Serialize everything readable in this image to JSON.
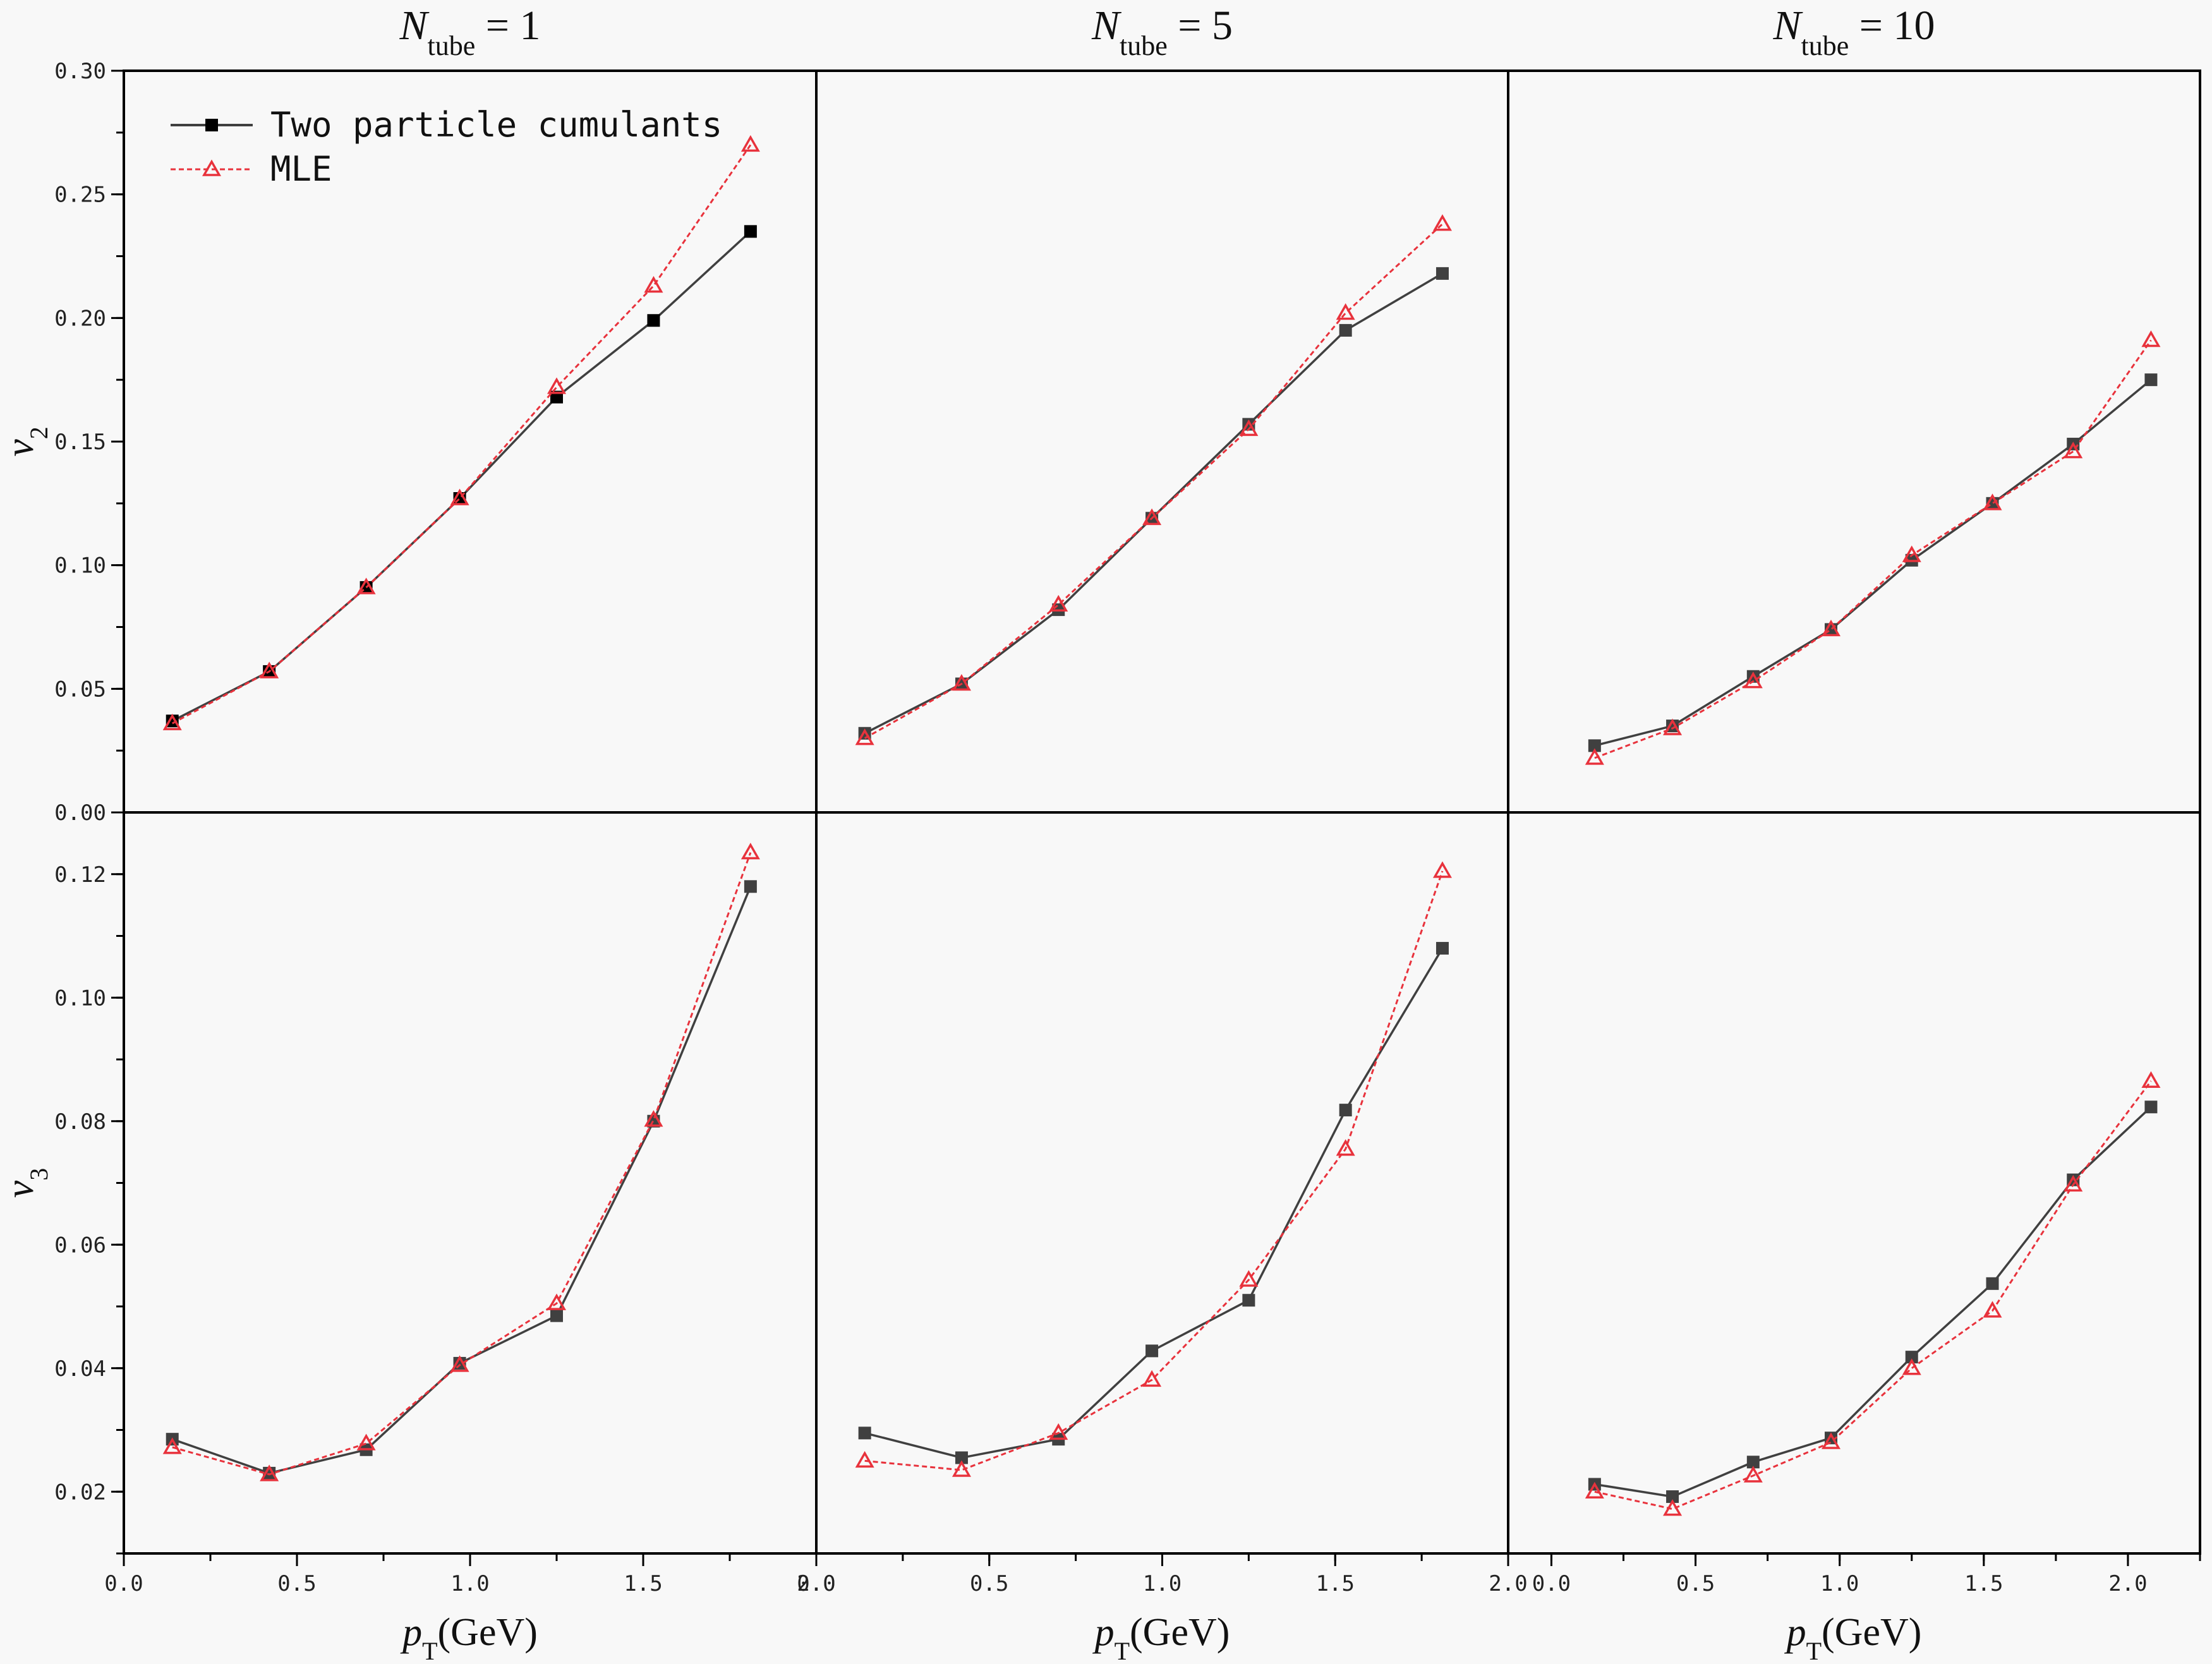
{
  "chart_data": {
    "type": "line",
    "x_label": {
      "var": "p",
      "sub": "T",
      "unit": "(GeV)"
    },
    "legend": {
      "placement": "top-left",
      "entries": [
        "Two particle cumulants",
        "MLE"
      ]
    },
    "colors": {
      "cumulants": "#404040",
      "mle": "#e8323c",
      "frame": "#000000",
      "background": "#f8f8f8"
    },
    "column_titles": [
      {
        "var": "N",
        "sub": "tube",
        "text": " = 1"
      },
      {
        "var": "N",
        "sub": "tube",
        "text": " = 5"
      },
      {
        "var": "N",
        "sub": "tube",
        "text": " = 10"
      }
    ],
    "rows": [
      {
        "ylabel": {
          "var": "v",
          "sub": "2"
        },
        "ylim": [
          0.0,
          0.3
        ],
        "yticks": [
          "0.00",
          "0.05",
          "0.10",
          "0.15",
          "0.20",
          "0.25",
          "0.30"
        ]
      },
      {
        "ylabel": {
          "var": "v",
          "sub": "3"
        },
        "ylim": [
          0.01,
          0.13
        ],
        "yticks": [
          "0.02",
          "0.04",
          "0.06",
          "0.08",
          "0.10",
          "0.12"
        ]
      }
    ],
    "columns": [
      {
        "xlim": [
          0.0,
          2.0
        ],
        "xticks": [
          {
            "v": 0.0,
            "t": "0.0"
          },
          {
            "v": 0.5,
            "t": "0.5"
          },
          {
            "v": 1.0,
            "t": "1.0"
          },
          {
            "v": 1.5,
            "t": "1.5"
          },
          {
            "v": 2.0,
            "t": "2.0"
          }
        ]
      },
      {
        "xlim": [
          0.0,
          2.0
        ],
        "xticks": [
          {
            "v": 0.0,
            "t": "0.0"
          },
          {
            "v": 0.5,
            "t": "0.5"
          },
          {
            "v": 1.0,
            "t": "1.0"
          },
          {
            "v": 1.5,
            "t": "1.5"
          },
          {
            "v": 2.0,
            "t": "2.0"
          }
        ]
      },
      {
        "xlim": [
          -0.15,
          2.25
        ],
        "xticks": [
          {
            "v": 0.0,
            "t": "0.0"
          },
          {
            "v": 0.5,
            "t": "0.5"
          },
          {
            "v": 1.0,
            "t": "1.0"
          },
          {
            "v": 1.5,
            "t": "1.5"
          },
          {
            "v": 2.0,
            "t": "2.0"
          }
        ]
      }
    ],
    "panels": [
      {
        "row": 0,
        "col": 0,
        "x": [
          0.14,
          0.42,
          0.7,
          0.97,
          1.25,
          1.53,
          1.81
        ],
        "series": [
          {
            "name": "Two particle cumulants",
            "values": [
              0.037,
              0.057,
              0.091,
              0.127,
              0.168,
              0.199,
              0.235
            ]
          },
          {
            "name": "MLE",
            "values": [
              0.036,
              0.057,
              0.091,
              0.127,
              0.172,
              0.213,
              0.27
            ]
          }
        ]
      },
      {
        "row": 0,
        "col": 1,
        "x": [
          0.14,
          0.42,
          0.7,
          0.97,
          1.25,
          1.53,
          1.81
        ],
        "series": [
          {
            "name": "Two particle cumulants",
            "values": [
              0.032,
              0.052,
              0.082,
              0.119,
              0.157,
              0.195,
              0.218
            ]
          },
          {
            "name": "MLE",
            "values": [
              0.03,
              0.052,
              0.084,
              0.119,
              0.155,
              0.202,
              0.238
            ]
          }
        ]
      },
      {
        "row": 0,
        "col": 2,
        "x": [
          0.15,
          0.42,
          0.7,
          0.97,
          1.25,
          1.53,
          1.81,
          2.08
        ],
        "series": [
          {
            "name": "Two particle cumulants",
            "values": [
              0.027,
              0.035,
              0.055,
              0.074,
              0.102,
              0.125,
              0.149,
              0.175
            ]
          },
          {
            "name": "MLE",
            "values": [
              0.022,
              0.034,
              0.053,
              0.074,
              0.104,
              0.125,
              0.146,
              0.191
            ]
          }
        ]
      },
      {
        "row": 1,
        "col": 0,
        "x": [
          0.14,
          0.42,
          0.7,
          0.97,
          1.25,
          1.53,
          1.81
        ],
        "series": [
          {
            "name": "Two particle cumulants",
            "values": [
              0.0285,
              0.023,
              0.0268,
              0.0408,
              0.0485,
              0.08,
              0.118
            ]
          },
          {
            "name": "MLE",
            "values": [
              0.0272,
              0.0228,
              0.0278,
              0.0405,
              0.0505,
              0.0802,
              0.1235
            ]
          }
        ]
      },
      {
        "row": 1,
        "col": 1,
        "x": [
          0.14,
          0.42,
          0.7,
          0.97,
          1.25,
          1.53,
          1.81
        ],
        "series": [
          {
            "name": "Two particle cumulants",
            "values": [
              0.0295,
              0.0255,
              0.0285,
              0.0428,
              0.051,
              0.0818,
              0.108
            ]
          },
          {
            "name": "MLE",
            "values": [
              0.025,
              0.0235,
              0.0295,
              0.0381,
              0.0543,
              0.0755,
              0.1205
            ]
          }
        ]
      },
      {
        "row": 1,
        "col": 2,
        "x": [
          0.15,
          0.42,
          0.7,
          0.97,
          1.25,
          1.53,
          1.81,
          2.08
        ],
        "series": [
          {
            "name": "Two particle cumulants",
            "values": [
              0.0212,
              0.0192,
              0.0248,
              0.0287,
              0.0418,
              0.0537,
              0.0705,
              0.0823
            ]
          },
          {
            "name": "MLE",
            "values": [
              0.02,
              0.0172,
              0.0226,
              0.028,
              0.04,
              0.0493,
              0.0697,
              0.0865
            ]
          }
        ]
      }
    ]
  }
}
